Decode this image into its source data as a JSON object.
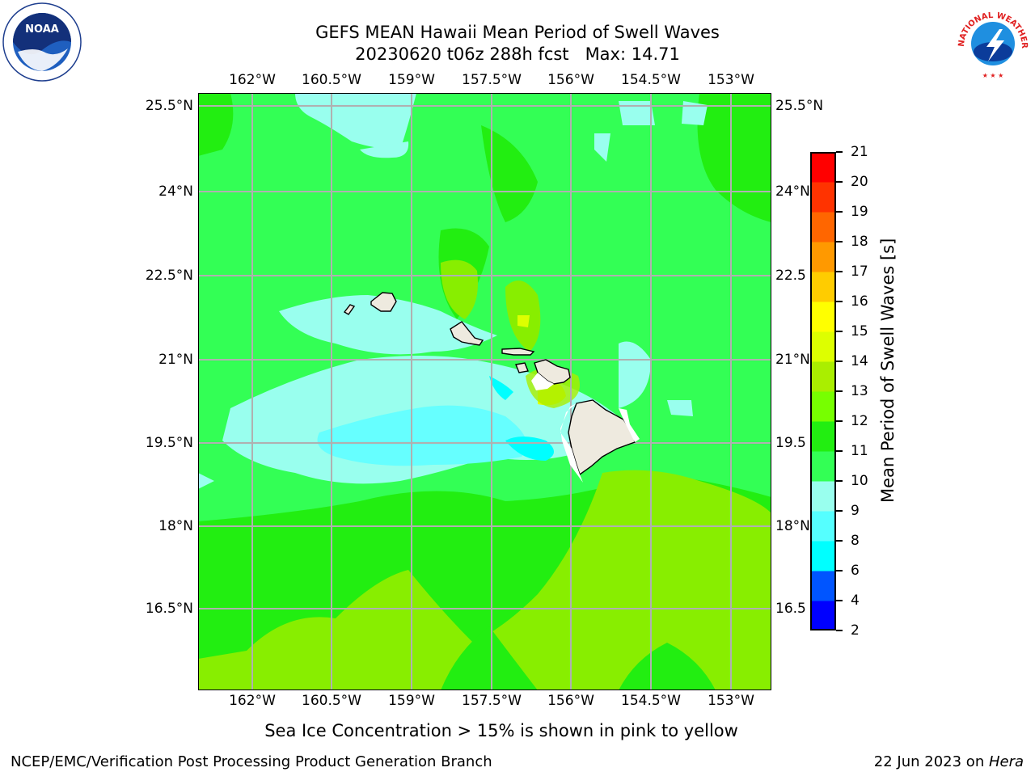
{
  "title": {
    "line1": "GEFS MEAN Hawaii Mean Period of Swell Waves",
    "line2": "20230620 t06z 288h fcst   Max: 14.71"
  },
  "logos": {
    "left": "NOAA",
    "left_ring_text": "NATIONAL OCEANIC AND ATMOSPHERIC ADMINISTRATION · U.S. DEPARTMENT OF COMMERCE",
    "right_ring_text": "NATIONAL WEATHER SERVICE"
  },
  "axes": {
    "lon_labels": [
      "162°W",
      "160.5°W",
      "159°W",
      "157.5°W",
      "156°W",
      "154.5°W",
      "153°W"
    ],
    "lat_labels_left": [
      "25.5°N",
      "24°N",
      "22.5°N",
      "21°N",
      "19.5°N",
      "18°N",
      "16.5°N"
    ],
    "lat_labels_right": [
      "25.5°N",
      "24°N",
      "22.5",
      "21°N",
      "19.5",
      "18°N",
      "16.5"
    ]
  },
  "colorbar": {
    "label": "Mean Period of Swell Waves [s]",
    "ticks": [
      "2",
      "4",
      "6",
      "8",
      "9",
      "10",
      "11",
      "12",
      "13",
      "14",
      "15",
      "16",
      "17",
      "18",
      "19",
      "20",
      "21"
    ],
    "colors": [
      "#0000ff",
      "#0055ff",
      "#00ffff",
      "#55ffff",
      "#99ffee",
      "#33ff55",
      "#22ee11",
      "#77ff00",
      "#aaee00",
      "#ddff00",
      "#ffff00",
      "#ffcc00",
      "#ff9900",
      "#ff6600",
      "#ff3300",
      "#ff0000"
    ]
  },
  "map": {
    "background_color": "#33ff55",
    "grid_color": "#b0b0b0"
  },
  "subtitle": "Sea Ice Concentration > 15% is shown in pink to yellow",
  "footer": {
    "left": "NCEP/EMC/Verification Post Processing Product Generation Branch",
    "right_prefix": "22 Jun 2023 on ",
    "right_italic": "Hera"
  }
}
